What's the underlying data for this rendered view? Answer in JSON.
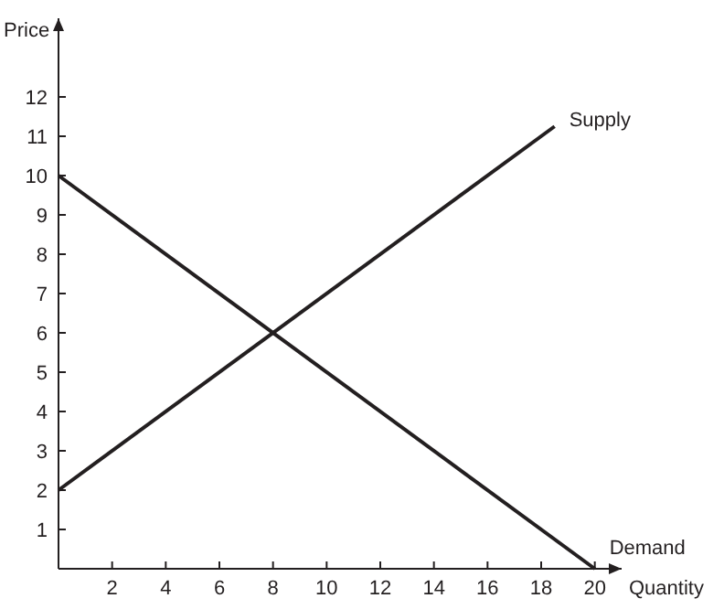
{
  "chart_data": {
    "type": "line",
    "xlabel": "Quantity",
    "ylabel": "Price",
    "series": [
      {
        "name": "Supply",
        "color": "#231f20",
        "x": [
          0,
          18.5
        ],
        "values": [
          2,
          11.25
        ]
      },
      {
        "name": "Demand",
        "color": "#231f20",
        "x": [
          0,
          20
        ],
        "values": [
          10,
          0
        ]
      }
    ],
    "xlim": [
      0,
      21
    ],
    "ylim": [
      0,
      14
    ],
    "xticks": [
      2,
      4,
      6,
      8,
      10,
      12,
      14,
      16,
      18,
      20
    ],
    "yticks": [
      1,
      2,
      3,
      4,
      5,
      6,
      7,
      8,
      9,
      10,
      11,
      12
    ],
    "grid": false,
    "marker": "none",
    "line_style": "solid"
  }
}
